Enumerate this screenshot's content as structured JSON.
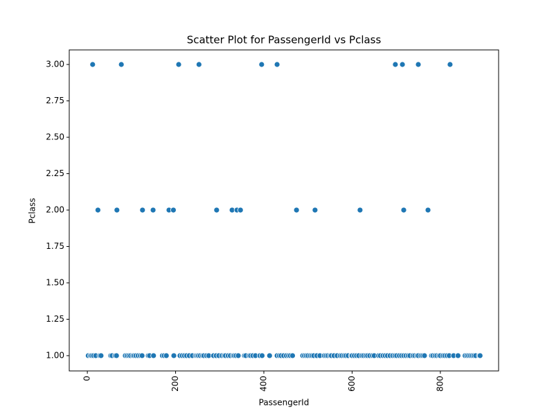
{
  "chart_data": {
    "type": "scatter",
    "title": "Scatter Plot for PassengerId vs Pclass",
    "xlabel": "PassengerId",
    "ylabel": "Pclass",
    "color": "#1f77b4",
    "xlim": [
      -41,
      932
    ],
    "ylim": [
      0.895,
      3.1
    ],
    "xticks": [
      0,
      200,
      400,
      600,
      800
    ],
    "yticks": [
      {
        "value": 1,
        "label": "1.00"
      },
      {
        "value": 1.25,
        "label": "1.25"
      },
      {
        "value": 1.5,
        "label": "1.50"
      },
      {
        "value": 1.75,
        "label": "1.75"
      },
      {
        "value": 2,
        "label": "2.00"
      },
      {
        "value": 2.25,
        "label": "2.25"
      },
      {
        "value": 2.5,
        "label": "2.50"
      },
      {
        "value": 2.75,
        "label": "2.75"
      },
      {
        "value": 3,
        "label": "3.00"
      }
    ],
    "x": [
      12,
      77,
      207,
      253,
      395,
      430,
      698,
      714,
      750,
      822,
      24,
      67,
      125,
      149,
      185,
      195,
      293,
      328,
      339,
      347,
      474,
      516,
      618,
      717,
      772,
      2,
      7,
      10,
      14,
      19,
      28,
      31,
      53,
      56,
      63,
      66,
      86,
      90,
      94,
      98,
      103,
      106,
      110,
      115,
      120,
      124,
      138,
      141,
      150,
      170,
      174,
      179,
      196,
      210,
      215,
      220,
      225,
      231,
      238,
      246,
      249,
      252,
      256,
      261,
      264,
      270,
      275,
      286,
      292,
      298,
      305,
      310,
      313,
      319,
      324,
      330,
      333,
      337,
      342,
      356,
      359,
      367,
      370,
      375,
      381,
      391,
      396,
      413,
      430,
      435,
      439,
      445,
      451,
      456,
      460,
      465,
      488,
      492,
      496,
      500,
      505,
      509,
      513,
      520,
      527,
      537,
      541,
      545,
      550,
      553,
      559,
      566,
      573,
      577,
      582,
      586,
      591,
      598,
      600,
      605,
      610,
      615,
      622,
      626,
      631,
      635,
      640,
      646,
      650,
      660,
      664,
      670,
      675,
      680,
      686,
      692,
      697,
      701,
      707,
      712,
      717,
      722,
      727,
      731,
      738,
      742,
      747,
      750,
      756,
      760,
      764,
      780,
      783,
      788,
      792,
      797,
      800,
      806,
      810,
      815,
      820,
      830,
      840,
      856,
      860,
      864,
      868,
      872,
      876,
      880,
      888,
      890
    ],
    "values": [
      3,
      3,
      3,
      3,
      3,
      3,
      3,
      3,
      3,
      3,
      2,
      2,
      2,
      2,
      2,
      2,
      2,
      2,
      2,
      2,
      2,
      2,
      2,
      2,
      2,
      1,
      1,
      1,
      1,
      1,
      1,
      1,
      1,
      1,
      1,
      1,
      1,
      1,
      1,
      1,
      1,
      1,
      1,
      1,
      1,
      1,
      1,
      1,
      1,
      1,
      1,
      1,
      1,
      1,
      1,
      1,
      1,
      1,
      1,
      1,
      1,
      1,
      1,
      1,
      1,
      1,
      1,
      1,
      1,
      1,
      1,
      1,
      1,
      1,
      1,
      1,
      1,
      1,
      1,
      1,
      1,
      1,
      1,
      1,
      1,
      1,
      1,
      1,
      1,
      1,
      1,
      1,
      1,
      1,
      1,
      1,
      1,
      1,
      1,
      1,
      1,
      1,
      1,
      1,
      1,
      1,
      1,
      1,
      1,
      1,
      1,
      1,
      1,
      1,
      1,
      1,
      1,
      1,
      1,
      1,
      1,
      1,
      1,
      1,
      1,
      1,
      1,
      1,
      1,
      1,
      1,
      1,
      1,
      1,
      1,
      1,
      1,
      1,
      1,
      1,
      1,
      1,
      1,
      1,
      1,
      1,
      1,
      1,
      1,
      1,
      1,
      1,
      1,
      1,
      1,
      1,
      1,
      1,
      1,
      1,
      1,
      1,
      1,
      1,
      1,
      1,
      1,
      1,
      1,
      1,
      1,
      1
    ]
  }
}
